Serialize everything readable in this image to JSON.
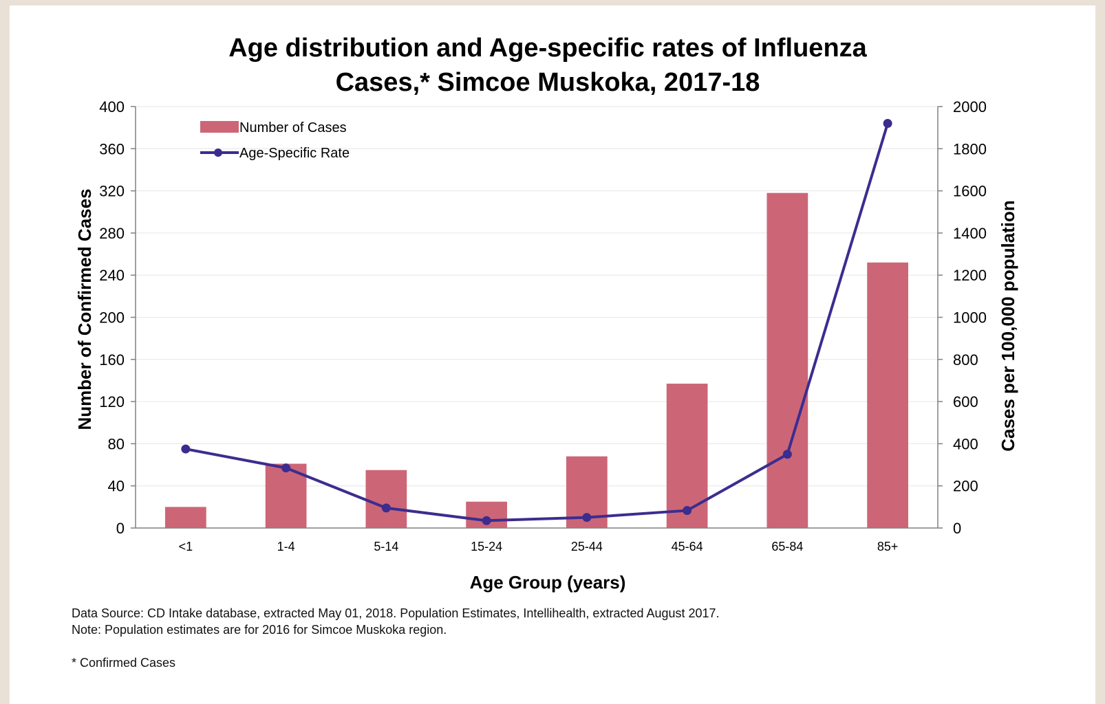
{
  "chart_data": {
    "type": "bar",
    "title_lines": [
      "Age distribution and Age-specific rates of Influenza",
      "Cases,* Simcoe Muskoka, 2017-18"
    ],
    "xlabel": "Age Group (years)",
    "ylabel": "Number of Confirmed Cases",
    "y2label": "Cases per 100,000 population",
    "categories": [
      "<1",
      "1-4",
      "5-14",
      "15-24",
      "25-44",
      "45-64",
      "65-84",
      "85+"
    ],
    "ylim": [
      0,
      400
    ],
    "y2lim": [
      0,
      2000
    ],
    "yticks": [
      0,
      40,
      80,
      120,
      160,
      200,
      240,
      280,
      320,
      360,
      400
    ],
    "y2ticks": [
      0,
      200,
      400,
      600,
      800,
      1000,
      1200,
      1400,
      1600,
      1800,
      2000
    ],
    "legend_position": "top-left",
    "grid": true,
    "series": [
      {
        "name": "Number of Cases",
        "type": "bar",
        "axis": "left",
        "color": "#cc6677",
        "values": [
          20,
          61,
          55,
          25,
          68,
          137,
          318,
          252
        ]
      },
      {
        "name": "Age-Specific Rate",
        "type": "line",
        "axis": "right",
        "color": "#3b2d8f",
        "values": [
          375,
          285,
          95,
          35,
          50,
          83,
          350,
          1920
        ]
      }
    ]
  },
  "notes": {
    "source": "Data Source:  CD Intake database, extracted May 01, 2018. Population Estimates, Intellihealth, extracted August 2017.",
    "population": "Note: Population estimates are for 2016 for Simcoe Muskoka region.",
    "footnote": "* Confirmed Cases"
  }
}
